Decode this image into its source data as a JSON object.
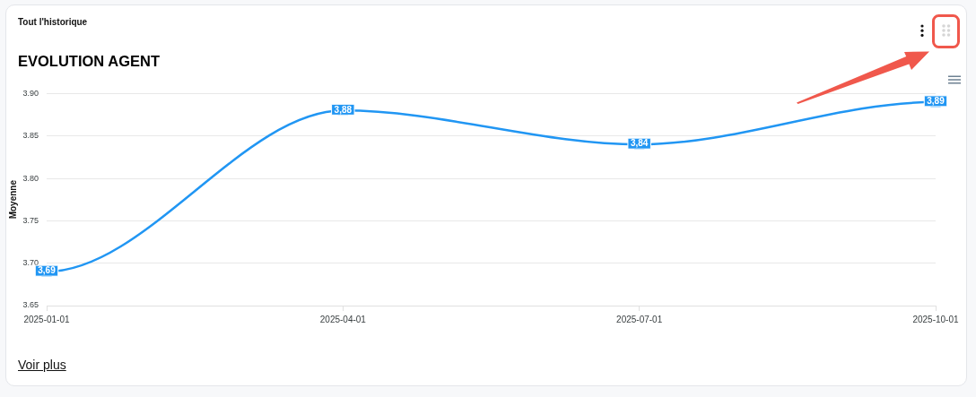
{
  "chart_data": {
    "type": "line",
    "title": "EVOLUTION AGENT",
    "subtitle": "Tout l'historique",
    "ylabel": "Moyenne",
    "categories": [
      "2025-01-01",
      "2025-04-01",
      "2025-07-01",
      "2025-10-01"
    ],
    "values": [
      3.69,
      3.88,
      3.84,
      3.89
    ],
    "color": "#2196f3",
    "value_labels": [
      "3,69",
      "3,88",
      "3,84",
      "3,89"
    ],
    "ylim": [
      3.65,
      3.9
    ],
    "yticks": [
      3.65,
      {
        "value": 3.7,
        "label": "3.70"
      },
      3.75,
      {
        "value": 3.8,
        "label": "3.80"
      },
      3.85,
      {
        "value": 3.9,
        "label": "3.90"
      }
    ],
    "grid": "y",
    "marker": "square",
    "line_style": "solid",
    "annotations": [
      "Voir plus"
    ]
  }
}
